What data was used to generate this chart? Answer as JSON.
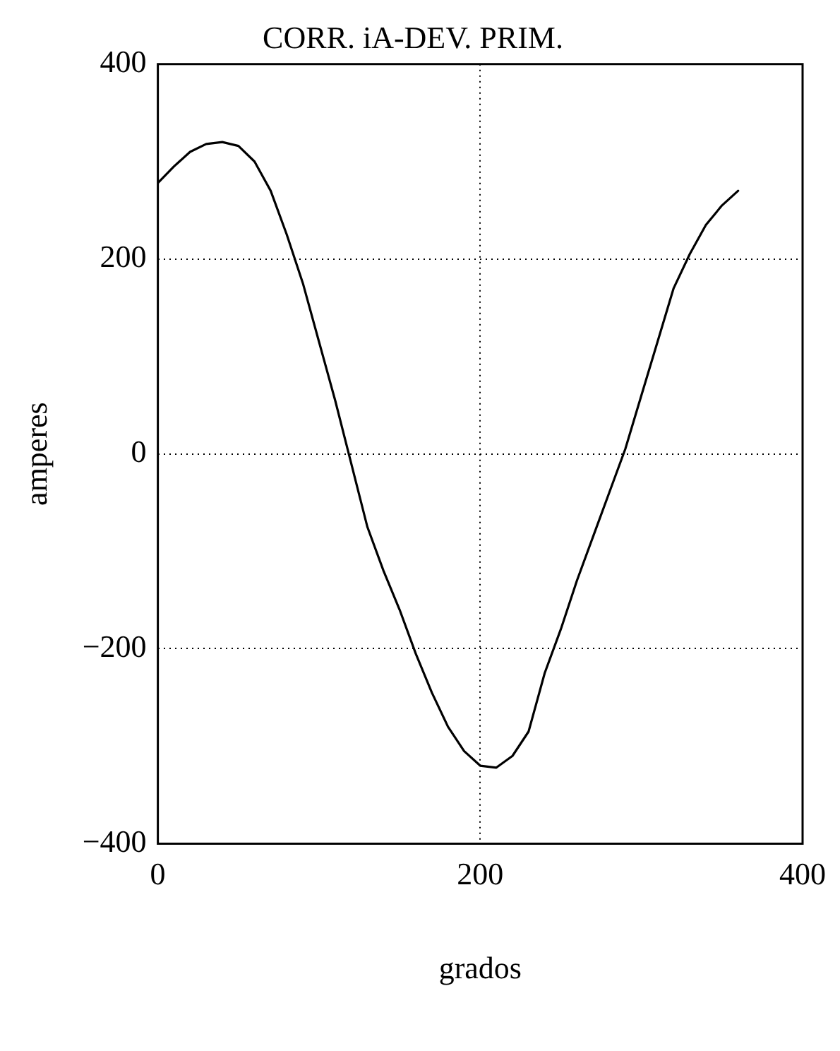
{
  "chart_data": {
    "type": "line",
    "title": "CORR. iA-DEV. PRIM.",
    "xlabel": "grados",
    "ylabel": "amperes",
    "x": [
      0,
      10,
      20,
      30,
      40,
      50,
      60,
      70,
      80,
      90,
      100,
      110,
      120,
      130,
      140,
      150,
      160,
      170,
      180,
      190,
      200,
      210,
      220,
      230,
      240,
      250,
      260,
      270,
      280,
      290,
      300,
      310,
      320,
      330,
      340,
      350,
      360
    ],
    "series": [
      {
        "color": "#000000",
        "values": [
          278,
          295,
          310,
          318,
          320,
          316,
          300,
          270,
          225,
          175,
          115,
          55,
          -10,
          -75,
          -120,
          -160,
          -205,
          -245,
          -280,
          -305,
          -320,
          -322,
          -310,
          -285,
          -225,
          -180,
          -130,
          -85,
          -40,
          5,
          60,
          115,
          170,
          205,
          235,
          255,
          270
        ]
      }
    ],
    "xlim": [
      0,
      400
    ],
    "xticks": [
      0,
      200,
      400
    ],
    "ylim": [
      -400,
      400
    ],
    "yticks": [
      -400,
      -200,
      0,
      200,
      400
    ],
    "grid": true,
    "legend": false,
    "marker": "none",
    "line_style": "solid"
  }
}
